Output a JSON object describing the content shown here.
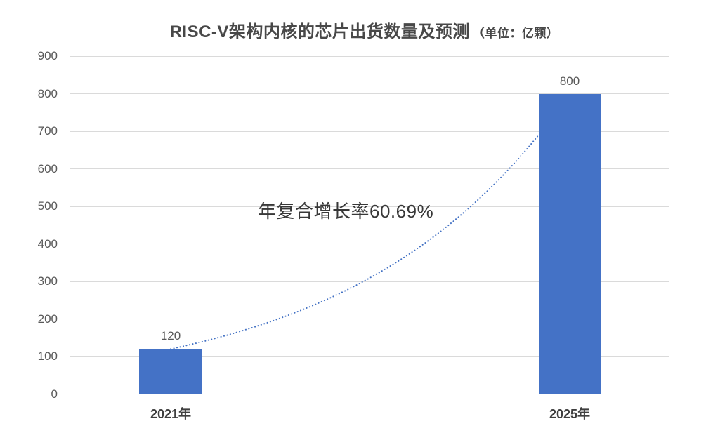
{
  "title": {
    "main": "RISC-V架构内核的芯片出货数量及预测",
    "unit": "（单位：亿颗）"
  },
  "chart_data": {
    "type": "bar",
    "title": "RISC-V架构内核的芯片出货数量及预测（单位：亿颗）",
    "categories": [
      "2021年",
      "2025年"
    ],
    "values": [
      120,
      800
    ],
    "bar_labels": [
      "120",
      "800"
    ],
    "xlabel": "",
    "ylabel": "",
    "ylim": [
      0,
      900
    ],
    "yticks": [
      0,
      100,
      200,
      300,
      400,
      500,
      600,
      700,
      800,
      900
    ],
    "grid": "horizontal",
    "legend": "none",
    "annotation": {
      "text": "年复合增长率60.69%",
      "cagr_percent": 60.69
    },
    "trend_curve": {
      "style": "dotted",
      "shape": "exponential",
      "start_value": 120,
      "end_value": 800,
      "growth_rate": 0.6069
    },
    "colors": {
      "bar": "#4472c6",
      "curve": "#4472c4",
      "grid": "#dadada",
      "axis_text": "#595959",
      "category_text": "#3f3f3f",
      "title_text": "#484848",
      "annotation_text": "#383838",
      "background": "#ffffff"
    }
  }
}
